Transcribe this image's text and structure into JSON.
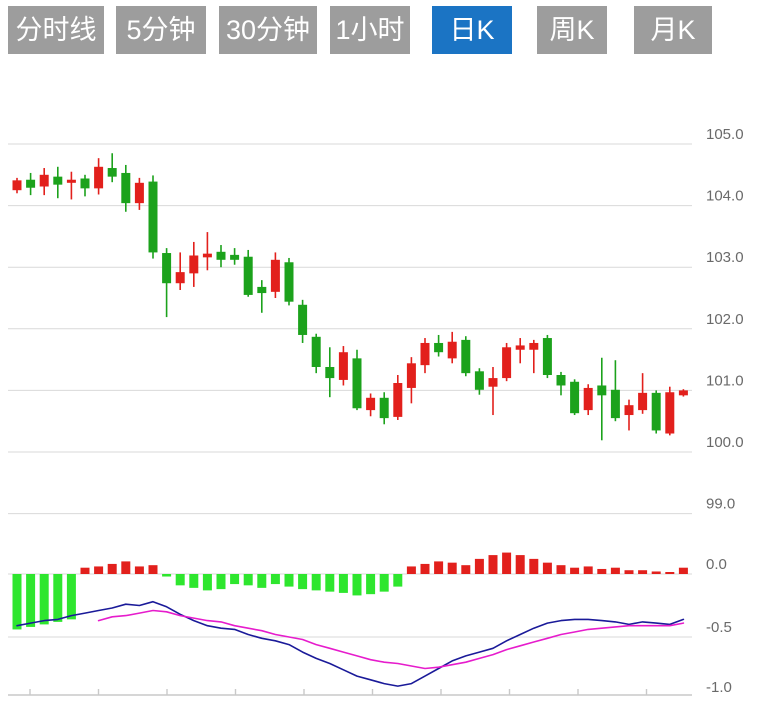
{
  "tabs": {
    "active_index": 4,
    "items": [
      {
        "label": "分时线"
      },
      {
        "label": "5分钟"
      },
      {
        "label": "30分钟"
      },
      {
        "label": "1小时"
      },
      {
        "label": "日K"
      },
      {
        "label": "周K"
      },
      {
        "label": "月K"
      }
    ]
  },
  "colors": {
    "up": "#e2201c",
    "down": "#1ca21c",
    "hist_up": "#e2201c",
    "hist_down": "#2ee62e",
    "dif_line": "#1a1a99",
    "dea_line": "#e61ccc",
    "grid": "#d9d9d9",
    "axis_line": "#c9c9c9",
    "axis_text": "#6a6a6a",
    "tab_bg": "#9d9d9d",
    "tab_active_bg": "#1b74c4",
    "tab_text": "#ffffff"
  },
  "chart_data": {
    "type": "candlestick",
    "title": "",
    "legend": "none",
    "grid": true,
    "panels": [
      "price",
      "macd"
    ],
    "price_panel": {
      "y_axis_side": "right",
      "y_tick_labels": [
        "105.0",
        "104.0",
        "103.0",
        "102.0",
        "101.0",
        "100.0",
        "99.0"
      ],
      "y_tick_values": [
        105.0,
        104.0,
        103.0,
        102.0,
        101.0,
        100.0,
        99.0
      ],
      "ylim": [
        98.7,
        105.3
      ],
      "candles_ohlc": [
        [
          104.25,
          104.45,
          104.2,
          104.41
        ],
        [
          104.42,
          104.53,
          104.17,
          104.29
        ],
        [
          104.31,
          104.61,
          104.17,
          104.5
        ],
        [
          104.47,
          104.63,
          104.12,
          104.34
        ],
        [
          104.37,
          104.55,
          104.1,
          104.42
        ],
        [
          104.44,
          104.5,
          104.15,
          104.28
        ],
        [
          104.28,
          104.77,
          104.18,
          104.63
        ],
        [
          104.61,
          104.85,
          104.38,
          104.47
        ],
        [
          104.53,
          104.66,
          103.9,
          104.04
        ],
        [
          104.04,
          104.45,
          103.93,
          104.37
        ],
        [
          104.39,
          104.49,
          103.14,
          103.24
        ],
        [
          103.23,
          103.31,
          102.19,
          102.74
        ],
        [
          102.74,
          103.24,
          102.63,
          102.92
        ],
        [
          102.9,
          103.41,
          102.68,
          103.19
        ],
        [
          103.16,
          103.57,
          102.95,
          103.22
        ],
        [
          103.25,
          103.36,
          103.0,
          103.12
        ],
        [
          103.2,
          103.31,
          103.04,
          103.12
        ],
        [
          103.17,
          103.28,
          102.52,
          102.55
        ],
        [
          102.68,
          102.79,
          102.26,
          102.58
        ],
        [
          102.6,
          103.24,
          102.5,
          103.12
        ],
        [
          103.08,
          103.15,
          102.38,
          102.44
        ],
        [
          102.39,
          102.47,
          101.77,
          101.9
        ],
        [
          101.87,
          101.92,
          101.28,
          101.38
        ],
        [
          101.38,
          101.7,
          100.89,
          101.2
        ],
        [
          101.17,
          101.72,
          101.08,
          101.62
        ],
        [
          101.52,
          101.66,
          100.68,
          100.71
        ],
        [
          100.68,
          100.95,
          100.58,
          100.88
        ],
        [
          100.88,
          100.97,
          100.45,
          100.55
        ],
        [
          100.57,
          101.25,
          100.52,
          101.12
        ],
        [
          101.04,
          101.54,
          100.79,
          101.44
        ],
        [
          101.41,
          101.85,
          101.28,
          101.77
        ],
        [
          101.77,
          101.9,
          101.55,
          101.62
        ],
        [
          101.52,
          101.95,
          101.44,
          101.79
        ],
        [
          101.82,
          101.88,
          101.23,
          101.28
        ],
        [
          101.31,
          101.36,
          100.93,
          101.01
        ],
        [
          101.06,
          101.38,
          100.6,
          101.2
        ],
        [
          101.2,
          101.77,
          101.15,
          101.7
        ],
        [
          101.66,
          101.85,
          101.44,
          101.73
        ],
        [
          101.66,
          101.82,
          101.28,
          101.77
        ],
        [
          101.85,
          101.9,
          101.2,
          101.25
        ],
        [
          101.25,
          101.3,
          100.92,
          101.08
        ],
        [
          101.14,
          101.18,
          100.6,
          100.63
        ],
        [
          100.68,
          101.1,
          100.6,
          101.04
        ],
        [
          101.08,
          101.53,
          100.19,
          100.92
        ],
        [
          101.01,
          101.49,
          100.5,
          100.55
        ],
        [
          100.6,
          100.85,
          100.35,
          100.76
        ],
        [
          100.68,
          101.28,
          100.62,
          100.96
        ],
        [
          100.96,
          101.0,
          100.3,
          100.35
        ],
        [
          100.3,
          101.06,
          100.27,
          100.97
        ],
        [
          100.92,
          101.02,
          100.9,
          101.0
        ]
      ]
    },
    "macd_panel": {
      "y_axis_side": "right",
      "y_tick_labels": [
        "0.0",
        "-0.5",
        "-1.0"
      ],
      "y_tick_values": [
        0.0,
        -0.5,
        -1.0
      ],
      "ylim": [
        -1.05,
        0.25
      ],
      "histogram": [
        -0.44,
        -0.42,
        -0.4,
        -0.38,
        -0.36,
        0.05,
        0.06,
        0.08,
        0.1,
        0.06,
        0.07,
        -0.02,
        -0.09,
        -0.11,
        -0.13,
        -0.12,
        -0.08,
        -0.09,
        -0.11,
        -0.08,
        -0.1,
        -0.12,
        -0.13,
        -0.14,
        -0.15,
        -0.17,
        -0.16,
        -0.14,
        -0.1,
        0.06,
        0.08,
        0.1,
        0.09,
        0.07,
        0.12,
        0.15,
        0.17,
        0.15,
        0.12,
        0.09,
        0.07,
        0.05,
        0.06,
        0.04,
        0.05,
        0.03,
        0.03,
        0.02,
        0.01,
        0.05
      ],
      "dif": [
        -0.41,
        -0.39,
        -0.37,
        -0.36,
        -0.33,
        -0.31,
        -0.29,
        -0.27,
        -0.24,
        -0.25,
        -0.22,
        -0.26,
        -0.32,
        -0.37,
        -0.41,
        -0.43,
        -0.44,
        -0.48,
        -0.51,
        -0.53,
        -0.56,
        -0.62,
        -0.67,
        -0.71,
        -0.76,
        -0.81,
        -0.84,
        -0.87,
        -0.89,
        -0.87,
        -0.81,
        -0.75,
        -0.69,
        -0.65,
        -0.62,
        -0.59,
        -0.53,
        -0.48,
        -0.43,
        -0.39,
        -0.37,
        -0.36,
        -0.36,
        -0.37,
        -0.38,
        -0.4,
        -0.38,
        -0.39,
        -0.4,
        -0.36
      ],
      "dea": [
        null,
        null,
        null,
        null,
        null,
        null,
        -0.37,
        -0.34,
        -0.33,
        -0.31,
        -0.29,
        -0.3,
        -0.33,
        -0.35,
        -0.37,
        -0.38,
        -0.41,
        -0.43,
        -0.45,
        -0.48,
        -0.5,
        -0.52,
        -0.56,
        -0.59,
        -0.62,
        -0.65,
        -0.68,
        -0.7,
        -0.71,
        -0.73,
        -0.75,
        -0.74,
        -0.72,
        -0.7,
        -0.67,
        -0.64,
        -0.6,
        -0.57,
        -0.54,
        -0.51,
        -0.48,
        -0.46,
        -0.44,
        -0.43,
        -0.42,
        -0.41,
        -0.41,
        -0.41,
        -0.41,
        -0.39
      ]
    },
    "x_axis": {
      "tick_labels": [
        "",
        "",
        "",
        "",
        "",
        "",
        "",
        "",
        "",
        ""
      ],
      "tick_count": 10
    }
  }
}
